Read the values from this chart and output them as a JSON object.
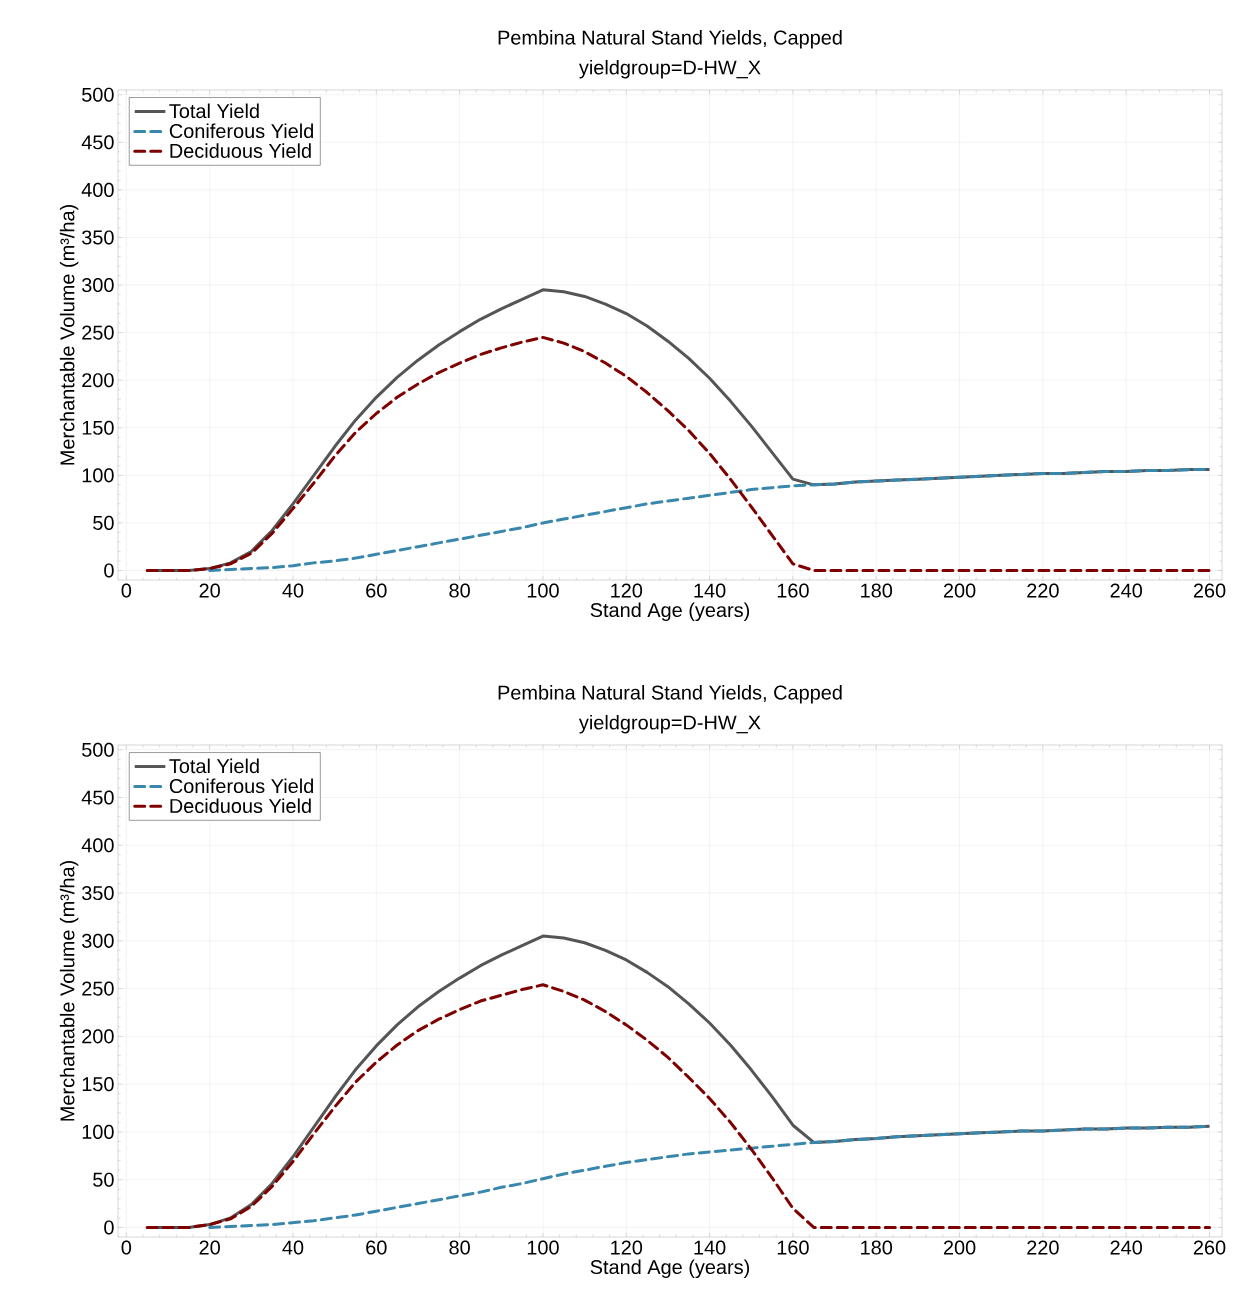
{
  "chart_data": [
    {
      "type": "line",
      "title": "Pembina Natural Stand Yields, Capped",
      "subtitle": "yieldgroup=D-HW_X",
      "xlabel": "Stand Age (years)",
      "ylabel": "Merchantable Volume (m³/ha)",
      "x": [
        5,
        10,
        15,
        20,
        25,
        30,
        35,
        40,
        45,
        50,
        55,
        60,
        65,
        70,
        75,
        80,
        85,
        90,
        95,
        100,
        105,
        110,
        115,
        120,
        125,
        130,
        135,
        140,
        145,
        150,
        155,
        160,
        165,
        170,
        175,
        180,
        185,
        190,
        195,
        200,
        205,
        210,
        215,
        220,
        225,
        230,
        235,
        240,
        245,
        250,
        255,
        260
      ],
      "series": [
        {
          "name": "Total Yield",
          "color": "#555555",
          "line_style": "solid",
          "values": [
            0,
            0,
            0,
            2,
            8,
            20,
            42,
            70,
            100,
            130,
            158,
            182,
            203,
            221,
            237,
            251,
            264,
            275,
            285,
            295,
            293,
            288,
            280,
            270,
            257,
            241,
            223,
            202,
            178,
            152,
            124,
            96,
            90,
            91,
            93,
            94,
            95,
            96,
            97,
            98,
            99,
            100,
            101,
            102,
            102,
            103,
            104,
            104,
            105,
            105,
            106,
            106
          ]
        },
        {
          "name": "Coniferous Yield",
          "color": "#3a87ad",
          "line_style": "dashed",
          "values": [
            null,
            null,
            null,
            0,
            1,
            2,
            3,
            5,
            8,
            10,
            13,
            17,
            21,
            25,
            29,
            33,
            37,
            41,
            45,
            50,
            54,
            58,
            62,
            66,
            70,
            73,
            76,
            79,
            82,
            85,
            87,
            89,
            90,
            91,
            93,
            94,
            95,
            96,
            97,
            98,
            99,
            100,
            101,
            102,
            102,
            103,
            104,
            104,
            105,
            105,
            106,
            106
          ]
        },
        {
          "name": "Deciduous Yield",
          "color": "#7f0000",
          "line_style": "dashed",
          "values": [
            0,
            0,
            0,
            2,
            7,
            18,
            39,
            65,
            92,
            120,
            145,
            165,
            182,
            196,
            208,
            218,
            227,
            234,
            240,
            245,
            239,
            230,
            218,
            204,
            187,
            168,
            147,
            123,
            96,
            67,
            37,
            7,
            0,
            0,
            0,
            0,
            0,
            0,
            0,
            0,
            0,
            0,
            0,
            0,
            0,
            0,
            0,
            0,
            0,
            0,
            0,
            0
          ]
        }
      ],
      "xlim": [
        -2,
        263
      ],
      "ylim": [
        -10,
        505
      ],
      "xticks": [
        0,
        20,
        40,
        60,
        80,
        100,
        120,
        140,
        160,
        180,
        200,
        220,
        240,
        260
      ],
      "yticks": [
        0,
        50,
        100,
        150,
        200,
        250,
        300,
        350,
        400,
        450,
        500
      ],
      "grid": true,
      "legend": "top left",
      "marker": "none"
    },
    {
      "type": "line",
      "title": "Pembina Natural Stand Yields, Capped",
      "subtitle": "yieldgroup=D-HW_X",
      "xlabel": "Stand Age (years)",
      "ylabel": "Merchantable Volume (m³/ha)",
      "x": [
        5,
        10,
        15,
        20,
        25,
        30,
        35,
        40,
        45,
        50,
        55,
        60,
        65,
        70,
        75,
        80,
        85,
        90,
        95,
        100,
        105,
        110,
        115,
        120,
        125,
        130,
        135,
        140,
        145,
        150,
        155,
        160,
        165,
        170,
        175,
        180,
        185,
        190,
        195,
        200,
        205,
        210,
        215,
        220,
        225,
        230,
        235,
        240,
        245,
        250,
        255,
        260
      ],
      "series": [
        {
          "name": "Total Yield",
          "color": "#555555",
          "line_style": "solid",
          "values": [
            0,
            0,
            0,
            3,
            10,
            24,
            46,
            74,
            105,
            136,
            165,
            190,
            212,
            231,
            247,
            261,
            274,
            285,
            295,
            305,
            303,
            298,
            290,
            280,
            267,
            252,
            234,
            214,
            191,
            165,
            137,
            107,
            89,
            90,
            92,
            93,
            95,
            96,
            97,
            98,
            99,
            100,
            101,
            101,
            102,
            103,
            103,
            104,
            104,
            105,
            105,
            106
          ]
        },
        {
          "name": "Coniferous Yield",
          "color": "#3a87ad",
          "line_style": "dashed",
          "values": [
            null,
            null,
            null,
            0,
            1,
            2,
            3,
            5,
            7,
            10,
            13,
            17,
            21,
            25,
            29,
            33,
            37,
            42,
            46,
            51,
            56,
            60,
            64,
            68,
            71,
            74,
            77,
            79,
            81,
            83,
            85,
            87,
            89,
            90,
            92,
            93,
            95,
            96,
            97,
            98,
            99,
            100,
            101,
            101,
            102,
            103,
            103,
            104,
            104,
            105,
            105,
            106
          ]
        },
        {
          "name": "Deciduous Yield",
          "color": "#7f0000",
          "line_style": "dashed",
          "values": [
            0,
            0,
            0,
            3,
            9,
            22,
            43,
            69,
            98,
            126,
            152,
            173,
            191,
            206,
            218,
            228,
            237,
            243,
            249,
            254,
            247,
            238,
            226,
            212,
            196,
            178,
            157,
            135,
            110,
            82,
            52,
            20,
            0,
            0,
            0,
            0,
            0,
            0,
            0,
            0,
            0,
            0,
            0,
            0,
            0,
            0,
            0,
            0,
            0,
            0,
            0,
            0
          ]
        }
      ],
      "xlim": [
        -2,
        263
      ],
      "ylim": [
        -10,
        505
      ],
      "xticks": [
        0,
        20,
        40,
        60,
        80,
        100,
        120,
        140,
        160,
        180,
        200,
        220,
        240,
        260
      ],
      "yticks": [
        0,
        50,
        100,
        150,
        200,
        250,
        300,
        350,
        400,
        450,
        500
      ],
      "grid": true,
      "legend": "top left",
      "marker": "none"
    }
  ]
}
